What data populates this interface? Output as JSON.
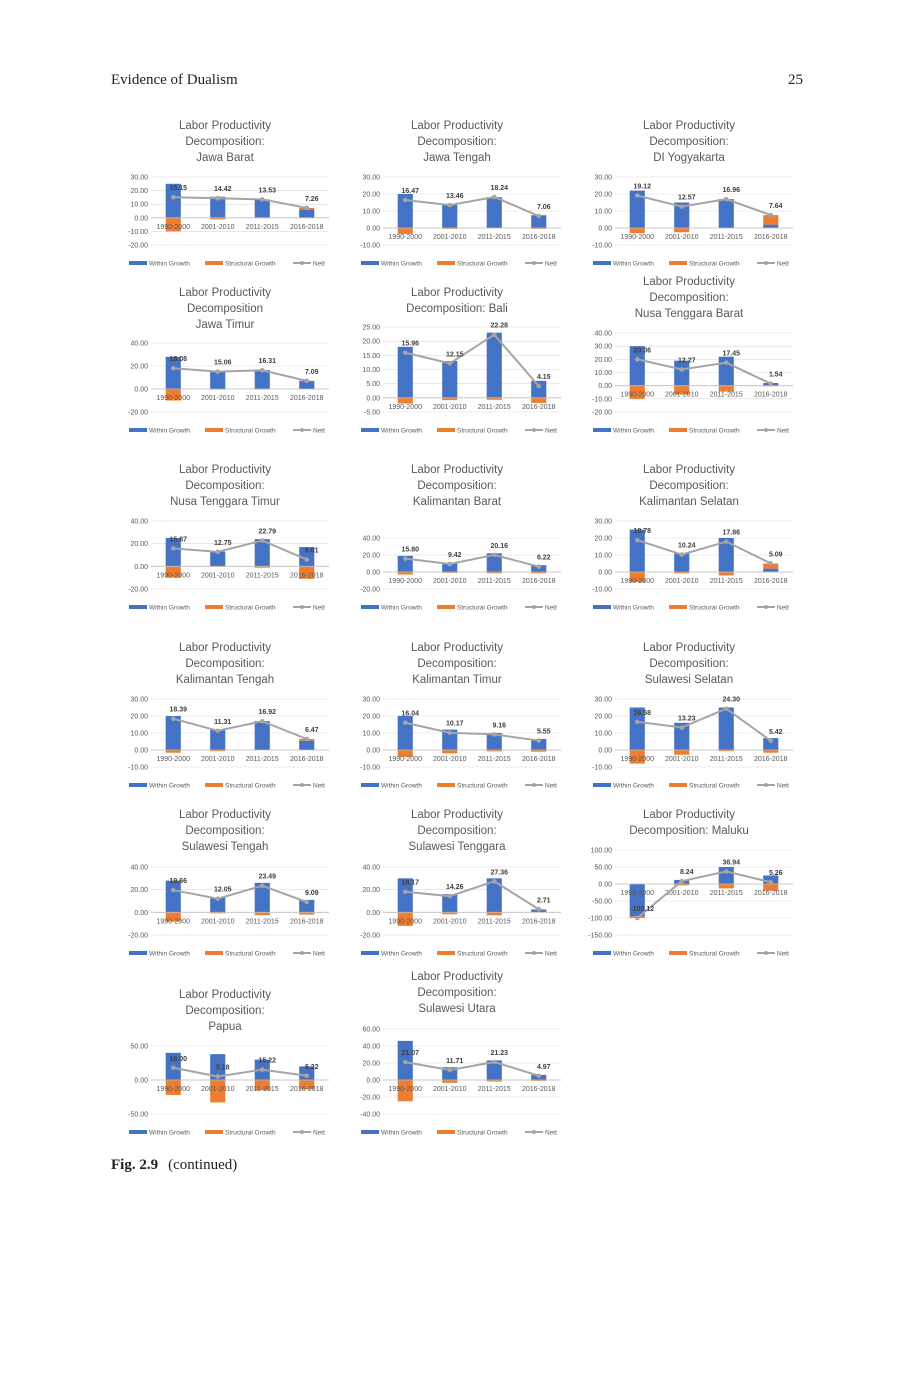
{
  "header": {
    "running_title": "Evidence of Dualism",
    "page_number": "25"
  },
  "caption": {
    "figure_label": "Fig. 2.9",
    "text": "(continued)"
  },
  "legend_labels": {
    "within": "Within Growth",
    "structural": "Structural Growth",
    "nett": "Nett"
  },
  "colors": {
    "within": "#4472C4",
    "structural": "#ED7D31",
    "nett": "#A5A5A5",
    "axis_text": "#595959",
    "grid": "#D9D9D9"
  },
  "chart_data": [
    {
      "type": "bar",
      "title_lines": [
        "Labor Productivity",
        "Decomposition:",
        "Jawa Barat"
      ],
      "categories": [
        "1990-2000",
        "2001-2010",
        "2011-2015",
        "2016-2018"
      ],
      "y_ticks": [
        "30.00",
        "20.00",
        "10.00",
        "0.00",
        "-10.00",
        "-20.00"
      ],
      "ylim": [
        -20,
        30
      ],
      "series": [
        {
          "name": "Within Growth",
          "values": [
            25,
            15.5,
            13.5,
            6
          ]
        },
        {
          "name": "Structural Growth",
          "values": [
            -10,
            -1.1,
            0,
            1.3
          ]
        },
        {
          "name": "Nett",
          "values": [
            15.15,
            14.42,
            13.53,
            7.26
          ]
        }
      ],
      "data_labels": [
        "15.15",
        "14.42",
        "13.53",
        "7.26"
      ]
    },
    {
      "type": "bar",
      "title_lines": [
        "Labor Productivity",
        "Decomposition:",
        "Jawa Tengah"
      ],
      "categories": [
        "1990-2000",
        "2001-2010",
        "2011-2015",
        "2016-2018"
      ],
      "y_ticks": [
        "30.00",
        "20.00",
        "10.00",
        "0.00",
        "-10.00"
      ],
      "ylim": [
        -10,
        30
      ],
      "series": [
        {
          "name": "Within Growth",
          "values": [
            20,
            14,
            18,
            7.5
          ]
        },
        {
          "name": "Structural Growth",
          "values": [
            -3.5,
            -0.5,
            0.2,
            -0.5
          ]
        },
        {
          "name": "Nett",
          "values": [
            16.47,
            13.46,
            18.24,
            7.06
          ]
        }
      ],
      "data_labels": [
        "16.47",
        "13.46",
        "18.24",
        "7.06"
      ]
    },
    {
      "type": "bar",
      "title_lines": [
        "Labor Productivity",
        "Decomposition:",
        "DI Yogyakarta"
      ],
      "categories": [
        "1990-2000",
        "2001-2010",
        "2011-2015",
        "2016-2018"
      ],
      "y_ticks": [
        "30.00",
        "20.00",
        "10.00",
        "0.00",
        "-10.00"
      ],
      "ylim": [
        -10,
        30
      ],
      "series": [
        {
          "name": "Within Growth",
          "values": [
            22,
            15,
            17,
            2
          ]
        },
        {
          "name": "Structural Growth",
          "values": [
            -3,
            -2.5,
            0,
            5.6
          ]
        },
        {
          "name": "Nett",
          "values": [
            19.12,
            12.57,
            16.96,
            7.64
          ]
        }
      ],
      "data_labels": [
        "19.12",
        "12.57",
        "16.96",
        "7.64"
      ]
    },
    {
      "type": "bar",
      "title_lines": [
        "Labor Productivity",
        "Decomposition",
        "Jawa Timur"
      ],
      "categories": [
        "1990-2000",
        "2001-2010",
        "2011-2015",
        "2016-2018"
      ],
      "y_ticks": [
        "40.00",
        "20.00",
        "0.00",
        "-20.00"
      ],
      "ylim": [
        -20,
        40
      ],
      "series": [
        {
          "name": "Within Growth",
          "values": [
            28,
            15.5,
            16.5,
            7
          ]
        },
        {
          "name": "Structural Growth",
          "values": [
            -10,
            -0.5,
            -0.2,
            0.1
          ]
        },
        {
          "name": "Nett",
          "values": [
            18.08,
            15.06,
            16.31,
            7.09
          ]
        }
      ],
      "data_labels": [
        "18.08",
        "15.06",
        "16.31",
        "7.09"
      ]
    },
    {
      "type": "bar",
      "title_lines": [
        "Labor Productivity",
        "Decomposition: Bali"
      ],
      "categories": [
        "1990-2000",
        "2001-2010",
        "2011-2015",
        "2016-2018"
      ],
      "y_ticks": [
        "25.00",
        "20.00",
        "15.00",
        "10.00",
        "5.00",
        "0.00",
        "-5.00"
      ],
      "ylim": [
        -5,
        25
      ],
      "series": [
        {
          "name": "Within Growth",
          "values": [
            18,
            13,
            23,
            6
          ]
        },
        {
          "name": "Structural Growth",
          "values": [
            -2,
            -0.8,
            -0.7,
            -1.8
          ]
        },
        {
          "name": "Nett",
          "values": [
            15.96,
            12.15,
            22.28,
            4.15
          ]
        }
      ],
      "data_labels": [
        "15.96",
        "12.15",
        "22.28",
        "4.15"
      ]
    },
    {
      "type": "bar",
      "title_lines": [
        "Labor Productivity",
        "Decomposition:",
        "Nusa Tenggara Barat"
      ],
      "categories": [
        "1990-2000",
        "2001-2010",
        "2011-2015",
        "2016-2018"
      ],
      "y_ticks": [
        "40.00",
        "30.00",
        "20.00",
        "10.00",
        "0.00",
        "-10.00",
        "-20.00"
      ],
      "ylim": [
        -20,
        40
      ],
      "series": [
        {
          "name": "Within Growth",
          "values": [
            30,
            19,
            22,
            2
          ]
        },
        {
          "name": "Structural Growth",
          "values": [
            -10,
            -6.7,
            -4.5,
            -0.5
          ]
        },
        {
          "name": "Nett",
          "values": [
            20.06,
            12.27,
            17.45,
            1.54
          ]
        }
      ],
      "data_labels": [
        "20.06",
        "12.27",
        "17.45",
        "1.54"
      ]
    },
    {
      "type": "bar",
      "title_lines": [
        "Labor Productivity",
        "Decomposition:",
        "Nusa Tenggara Timur"
      ],
      "categories": [
        "1990-2000",
        "2001-2010",
        "2011-2015",
        "2016-2018"
      ],
      "y_ticks": [
        "40.00",
        "20.00",
        "0.00",
        "-20.00"
      ],
      "ylim": [
        -20,
        40
      ],
      "series": [
        {
          "name": "Within Growth",
          "values": [
            25,
            13,
            24,
            17
          ]
        },
        {
          "name": "Structural Growth",
          "values": [
            -10,
            -0.3,
            -1.2,
            -11
          ]
        },
        {
          "name": "Nett",
          "values": [
            15.87,
            12.75,
            22.79,
            6.01
          ]
        }
      ],
      "data_labels": [
        "15.87",
        "12.75",
        "22.79",
        "6.01"
      ]
    },
    {
      "type": "bar",
      "title_lines": [
        "Labor Productivity",
        "Decomposition:",
        "Kalimantan Barat"
      ],
      "categories": [
        "1990-2000",
        "2001-2010",
        "2011-2015",
        "2016-2018"
      ],
      "y_ticks": [
        "40.00",
        "20.00",
        "0.00",
        "-20.00"
      ],
      "ylim": [
        -20,
        40
      ],
      "series": [
        {
          "name": "Within Growth",
          "values": [
            19,
            10.5,
            22,
            8
          ]
        },
        {
          "name": "Structural Growth",
          "values": [
            -3,
            -1,
            -1.5,
            -1.5
          ]
        },
        {
          "name": "Nett",
          "values": [
            15.8,
            9.42,
            20.16,
            6.22
          ]
        }
      ],
      "data_labels": [
        "15.80",
        "9.42",
        "20.16",
        "6.22"
      ]
    },
    {
      "type": "bar",
      "title_lines": [
        "Labor Productivity",
        "Decomposition:",
        "Kalimantan Selatan"
      ],
      "categories": [
        "1990-2000",
        "2001-2010",
        "2011-2015",
        "2016-2018"
      ],
      "y_ticks": [
        "30.00",
        "20.00",
        "10.00",
        "0.00",
        "-10.00"
      ],
      "ylim": [
        -10,
        30
      ],
      "series": [
        {
          "name": "Within Growth",
          "values": [
            25,
            11,
            20,
            2
          ]
        },
        {
          "name": "Structural Growth",
          "values": [
            -6,
            -0.8,
            -2,
            3
          ]
        },
        {
          "name": "Nett",
          "values": [
            18.78,
            10.24,
            17.86,
            5.09
          ]
        }
      ],
      "data_labels": [
        "18.78",
        "10.24",
        "17.86",
        "5.09"
      ]
    },
    {
      "type": "bar",
      "title_lines": [
        "Labor Productivity",
        "Decomposition:",
        "Kalimantan Tengah"
      ],
      "categories": [
        "1990-2000",
        "2001-2010",
        "2011-2015",
        "2016-2018"
      ],
      "y_ticks": [
        "30.00",
        "20.00",
        "10.00",
        "0.00",
        "-10.00"
      ],
      "ylim": [
        -10,
        30
      ],
      "series": [
        {
          "name": "Within Growth",
          "values": [
            20,
            12,
            17,
            5.5
          ]
        },
        {
          "name": "Structural Growth",
          "values": [
            -1.6,
            -0.7,
            0,
            1
          ]
        },
        {
          "name": "Nett",
          "values": [
            18.39,
            11.31,
            16.92,
            6.47
          ]
        }
      ],
      "data_labels": [
        "18.39",
        "11.31",
        "16.92",
        "6.47"
      ]
    },
    {
      "type": "bar",
      "title_lines": [
        "Labor Productivity",
        "Decomposition:",
        "Kalimantan Timur"
      ],
      "categories": [
        "1990-2000",
        "2001-2010",
        "2011-2015",
        "2016-2018"
      ],
      "y_ticks": [
        "30.00",
        "20.00",
        "10.00",
        "0.00",
        "-10.00"
      ],
      "ylim": [
        -10,
        30
      ],
      "series": [
        {
          "name": "Within Growth",
          "values": [
            20,
            12,
            10,
            6.5
          ]
        },
        {
          "name": "Structural Growth",
          "values": [
            -4,
            -2,
            -0.8,
            -1
          ]
        },
        {
          "name": "Nett",
          "values": [
            16.04,
            10.17,
            9.16,
            5.55
          ]
        }
      ],
      "data_labels": [
        "16.04",
        "10.17",
        "9.16",
        "5.55"
      ]
    },
    {
      "type": "bar",
      "title_lines": [
        "Labor Productivity",
        "Decomposition:",
        "Sulawesi Selatan"
      ],
      "categories": [
        "1990-2000",
        "2001-2010",
        "2011-2015",
        "2016-2018"
      ],
      "y_ticks": [
        "30.00",
        "20.00",
        "10.00",
        "0.00",
        "-10.00"
      ],
      "ylim": [
        -10,
        30
      ],
      "series": [
        {
          "name": "Within Growth",
          "values": [
            25,
            16,
            25,
            7
          ]
        },
        {
          "name": "Structural Growth",
          "values": [
            -8,
            -2.8,
            -0.7,
            -1.6
          ]
        },
        {
          "name": "Nett",
          "values": [
            16.58,
            13.23,
            24.3,
            5.42
          ]
        }
      ],
      "data_labels": [
        "16.58",
        "13.23",
        "24.30",
        "5.42"
      ]
    },
    {
      "type": "bar",
      "title_lines": [
        "Labor Productivity",
        "Decomposition:",
        "Sulawesi Tengah"
      ],
      "categories": [
        "1990-2000",
        "2001-2010",
        "2011-2015",
        "2016-2018"
      ],
      "y_ticks": [
        "40.00",
        "20.00",
        "0.00",
        "-20.00"
      ],
      "ylim": [
        -20,
        40
      ],
      "series": [
        {
          "name": "Within Growth",
          "values": [
            28,
            13,
            26,
            11
          ]
        },
        {
          "name": "Structural Growth",
          "values": [
            -8,
            -0.9,
            -2.5,
            -2
          ]
        },
        {
          "name": "Nett",
          "values": [
            19.66,
            12.05,
            23.49,
            9.09
          ]
        }
      ],
      "data_labels": [
        "19.66",
        "12.05",
        "23.49",
        "9.09"
      ]
    },
    {
      "type": "bar",
      "title_lines": [
        "Labor Productivity",
        "Decomposition:",
        "Sulawesi Tenggara"
      ],
      "categories": [
        "1990-2000",
        "2001-2010",
        "2011-2015",
        "2016-2018"
      ],
      "y_ticks": [
        "40.00",
        "20.00",
        "0.00",
        "-20.00"
      ],
      "ylim": [
        -20,
        40
      ],
      "series": [
        {
          "name": "Within Growth",
          "values": [
            30,
            16,
            30,
            2
          ]
        },
        {
          "name": "Structural Growth",
          "values": [
            -12,
            -1.7,
            -2.6,
            0.7
          ]
        },
        {
          "name": "Nett",
          "values": [
            18.17,
            14.26,
            27.36,
            2.71
          ]
        }
      ],
      "data_labels": [
        "18.17",
        "14.26",
        "27.36",
        "2.71"
      ]
    },
    {
      "type": "bar",
      "title_lines": [
        "Labor Productivity",
        "Decomposition: Maluku"
      ],
      "categories": [
        "1990-2000",
        "2001-2010",
        "2011-2015",
        "2016-2018"
      ],
      "y_ticks": [
        "100.00",
        "50.00",
        "0.00",
        "-50.00",
        "-100.00",
        "-150.00"
      ],
      "ylim": [
        -150,
        100
      ],
      "series": [
        {
          "name": "Within Growth",
          "values": [
            -95,
            12,
            50,
            25
          ]
        },
        {
          "name": "Structural Growth",
          "values": [
            -5,
            -4,
            -13,
            -20
          ]
        },
        {
          "name": "Nett",
          "values": [
            -100.12,
            8.24,
            36.94,
            5.26
          ]
        }
      ],
      "data_labels": [
        "-100.12",
        "8.24",
        "36.94",
        "5.26"
      ]
    },
    {
      "type": "bar",
      "title_lines": [
        "Labor Productivity",
        "Decomposition:",
        "Papua"
      ],
      "categories": [
        "1990-2000",
        "2001-2010",
        "2011-2015",
        "2016-2018"
      ],
      "y_ticks": [
        "50.00",
        "0.00",
        "-50.00"
      ],
      "ylim": [
        -50,
        50
      ],
      "series": [
        {
          "name": "Within Growth",
          "values": [
            40,
            38,
            30,
            20
          ]
        },
        {
          "name": "Structural Growth",
          "values": [
            -22,
            -33,
            -15,
            -13.8
          ]
        },
        {
          "name": "Nett",
          "values": [
            18.0,
            5.18,
            15.22,
            6.22
          ]
        }
      ],
      "data_labels": [
        "18.00",
        "5.18",
        "15.22",
        "6.22"
      ]
    },
    {
      "type": "bar",
      "title_lines": [
        "Labor Productivity",
        "Decomposition:",
        "Sulawesi Utara"
      ],
      "categories": [
        "1990-2000",
        "2001-2010",
        "2011-2015",
        "2016-2018"
      ],
      "y_ticks": [
        "60.00",
        "40.00",
        "20.00",
        "0.00",
        "-20.00",
        "-40.00"
      ],
      "ylim": [
        -40,
        60
      ],
      "series": [
        {
          "name": "Within Growth",
          "values": [
            46,
            15,
            23,
            6
          ]
        },
        {
          "name": "Structural Growth",
          "values": [
            -25,
            -3.3,
            -1.8,
            -1
          ]
        },
        {
          "name": "Nett",
          "values": [
            21.07,
            11.71,
            21.23,
            4.97
          ]
        }
      ],
      "data_labels": [
        "21.07",
        "11.71",
        "21.23",
        "4.97"
      ]
    }
  ]
}
